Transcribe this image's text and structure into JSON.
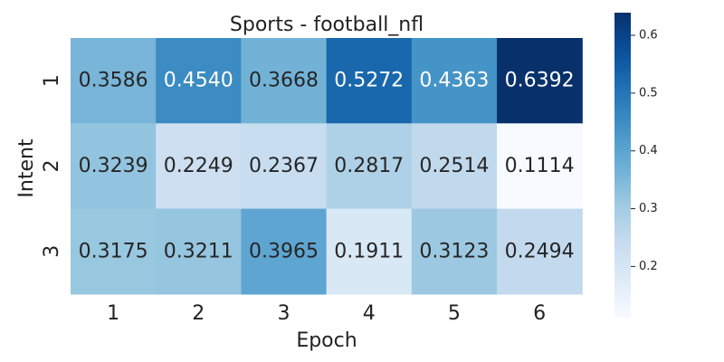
{
  "chart_data": {
    "type": "heatmap",
    "title": "Sports - football_nfl",
    "xlabel": "Epoch",
    "ylabel": "Intent",
    "x_categories": [
      "1",
      "2",
      "3",
      "4",
      "5",
      "6"
    ],
    "y_categories": [
      "1",
      "2",
      "3"
    ],
    "values": [
      [
        0.3586,
        0.454,
        0.3668,
        0.5272,
        0.4363,
        0.6392
      ],
      [
        0.3239,
        0.2249,
        0.2367,
        0.2817,
        0.2514,
        0.1114
      ],
      [
        0.3175,
        0.3211,
        0.3965,
        0.1911,
        0.3123,
        0.2494
      ]
    ],
    "colormap": "Blues",
    "color_range": [
      0.1114,
      0.6392
    ],
    "colorbar_ticks": [
      "0.2",
      "0.3",
      "0.4",
      "0.5",
      "0.6"
    ],
    "colorbar_tick_values": [
      0.2,
      0.3,
      0.4,
      0.5,
      0.6
    ],
    "text_light_color": "#ffffff",
    "text_dark_color": "#262626"
  }
}
